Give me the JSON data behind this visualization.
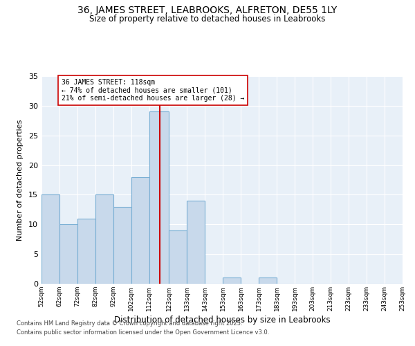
{
  "title_line1": "36, JAMES STREET, LEABROOKS, ALFRETON, DE55 1LY",
  "title_line2": "Size of property relative to detached houses in Leabrooks",
  "xlabel": "Distribution of detached houses by size in Leabrooks",
  "ylabel": "Number of detached properties",
  "footnote_line1": "Contains HM Land Registry data © Crown copyright and database right 2025.",
  "footnote_line2": "Contains public sector information licensed under the Open Government Licence v3.0.",
  "annotation_line1": "36 JAMES STREET: 118sqm",
  "annotation_line2": "← 74% of detached houses are smaller (101)",
  "annotation_line3": "21% of semi-detached houses are larger (28) →",
  "bin_lefts": [
    52,
    62,
    72,
    82,
    92,
    102,
    112,
    123,
    133,
    143,
    153,
    163,
    173,
    183,
    193,
    203,
    213,
    223,
    233,
    243
  ],
  "bin_widths": [
    10,
    10,
    10,
    10,
    10,
    10,
    11,
    10,
    10,
    10,
    10,
    10,
    10,
    10,
    10,
    10,
    10,
    10,
    10,
    10
  ],
  "counts": [
    15,
    10,
    11,
    15,
    13,
    18,
    29,
    9,
    14,
    0,
    1,
    0,
    1,
    0,
    0,
    0,
    0,
    0,
    0,
    0
  ],
  "property_size": 118,
  "bar_color": "#c8d9eb",
  "bar_edge_color": "#7aafd4",
  "vline_color": "#cc0000",
  "bg_color": "#e8f0f8",
  "annotation_box_edge": "#cc0000",
  "grid_color": "#ffffff",
  "xlim": [
    52,
    253
  ],
  "ylim": [
    0,
    35
  ],
  "yticks": [
    0,
    5,
    10,
    15,
    20,
    25,
    30,
    35
  ],
  "xtick_labels": [
    "52sqm",
    "62sqm",
    "72sqm",
    "82sqm",
    "92sqm",
    "102sqm",
    "112sqm",
    "123sqm",
    "133sqm",
    "143sqm",
    "153sqm",
    "163sqm",
    "173sqm",
    "183sqm",
    "193sqm",
    "203sqm",
    "213sqm",
    "223sqm",
    "233sqm",
    "243sqm",
    "253sqm"
  ]
}
